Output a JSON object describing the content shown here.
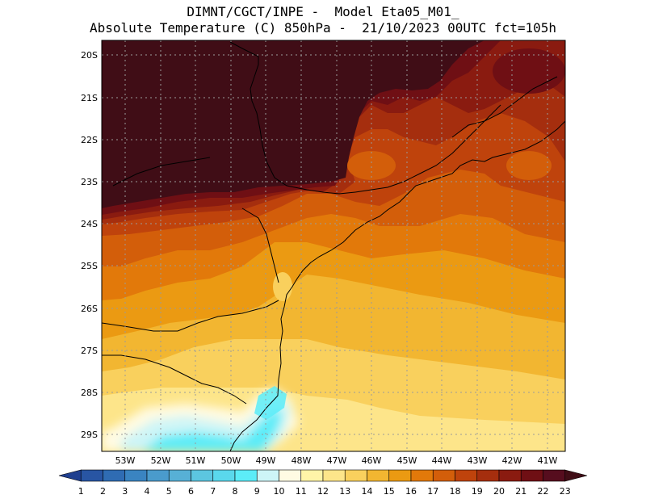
{
  "header": {
    "line1": "DIMNT/CGCT/INPE -  Model Eta05_M01_",
    "line2": "Absolute Temperature (C) 850hPa -  21/10/2023 00UTC fct=105h"
  },
  "map": {
    "lat_labels": [
      "20S",
      "21S",
      "22S",
      "23S",
      "24S",
      "25S",
      "26S",
      "27S",
      "28S",
      "29S"
    ],
    "lon_labels": [
      "53W",
      "52W",
      "51W",
      "50W",
      "49W",
      "48W",
      "47W",
      "46W",
      "45W",
      "44W",
      "43W",
      "42W",
      "41W"
    ],
    "grid": true
  },
  "colorbar": {
    "labels": [
      "1",
      "2",
      "3",
      "4",
      "5",
      "6",
      "7",
      "8",
      "9",
      "10",
      "11",
      "12",
      "13",
      "14",
      "15",
      "16",
      "17",
      "18",
      "19",
      "20",
      "21",
      "22",
      "23"
    ],
    "colors": [
      "#1f3f8f",
      "#2855a3",
      "#2f6cb3",
      "#3a84c1",
      "#4a9bcc",
      "#57b0d6",
      "#5cc6e0",
      "#5ad8ec",
      "#5cecf8",
      "#cdf5f7",
      "#fffbe3",
      "#fff4a8",
      "#fde58a",
      "#f9d05d",
      "#f2b631",
      "#eb9a12",
      "#e2790a",
      "#d35e0a",
      "#bf430c",
      "#a52e0e",
      "#8a1b10",
      "#6f0f14",
      "#560d1e",
      "#400d16"
    ],
    "palette": {
      "cold": "#5cecf8",
      "cool": "#cdf5f7",
      "mild": "#fff4a8",
      "warm": "#f2b631",
      "hot": "#d35e0a",
      "hottest": "#400d16"
    }
  }
}
